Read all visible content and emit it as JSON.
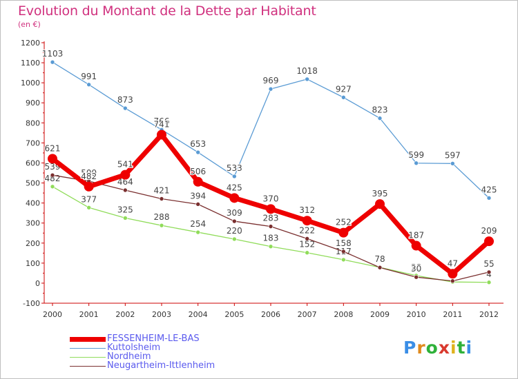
{
  "title": "Evolution du Montant de la Dette par Habitant",
  "subtitle": "(en €)",
  "colors": {
    "title": "#d0307e",
    "axis": "#cc0000",
    "legend_text": "#5a5aee"
  },
  "logo": {
    "letters": [
      "P",
      "r",
      "o",
      "x",
      "i",
      "t",
      "i"
    ],
    "colors": [
      "#3a8ee6",
      "#e08a1e",
      "#2fb13a",
      "#d93a2e",
      "#e0b21e",
      "#2fb13a",
      "#3a8ee6"
    ]
  },
  "chart_data": {
    "type": "line",
    "title": "Evolution du Montant de la Dette par Habitant",
    "subtitle": "(en €)",
    "x": [
      "2000",
      "2001",
      "2002",
      "2003",
      "2004",
      "2005",
      "2006",
      "2007",
      "2008",
      "2009",
      "2010",
      "2011",
      "2012"
    ],
    "ylim": [
      -100,
      1200
    ],
    "yticks": [
      -100,
      0,
      100,
      200,
      300,
      400,
      500,
      600,
      700,
      800,
      900,
      1000,
      1100,
      1200
    ],
    "grid": false,
    "legend_position": "bottom-left",
    "series": [
      {
        "name": "Kuttolsheim",
        "color": "#5a9bd4",
        "values": [
          1103,
          991,
          873,
          766,
          653,
          533,
          969,
          1018,
          927,
          823,
          599,
          597,
          425
        ]
      },
      {
        "name": "Nordheim",
        "color": "#90dc5a",
        "values": [
          482,
          377,
          325,
          288,
          254,
          220,
          183,
          152,
          117,
          79,
          38,
          6,
          4
        ]
      },
      {
        "name": "Neugartheim-Ittlenheim",
        "color": "#7a2f2f",
        "values": [
          539,
          509,
          464,
          421,
          394,
          309,
          283,
          222,
          158,
          78,
          30,
          11,
          55
        ]
      },
      {
        "name": "FESSENHEIM-LE-BAS",
        "color": "#ee0000",
        "values": [
          621,
          482,
          541,
          741,
          506,
          425,
          370,
          312,
          252,
          395,
          187,
          47,
          209
        ]
      }
    ],
    "legend": [
      {
        "name": "FESSENHEIM-LE-BAS",
        "color": "#ee0000"
      },
      {
        "name": "Kuttolsheim",
        "color": "#5a9bd4"
      },
      {
        "name": "Nordheim",
        "color": "#90dc5a"
      },
      {
        "name": "Neugartheim-Ittlenheim",
        "color": "#7a2f2f"
      }
    ]
  }
}
